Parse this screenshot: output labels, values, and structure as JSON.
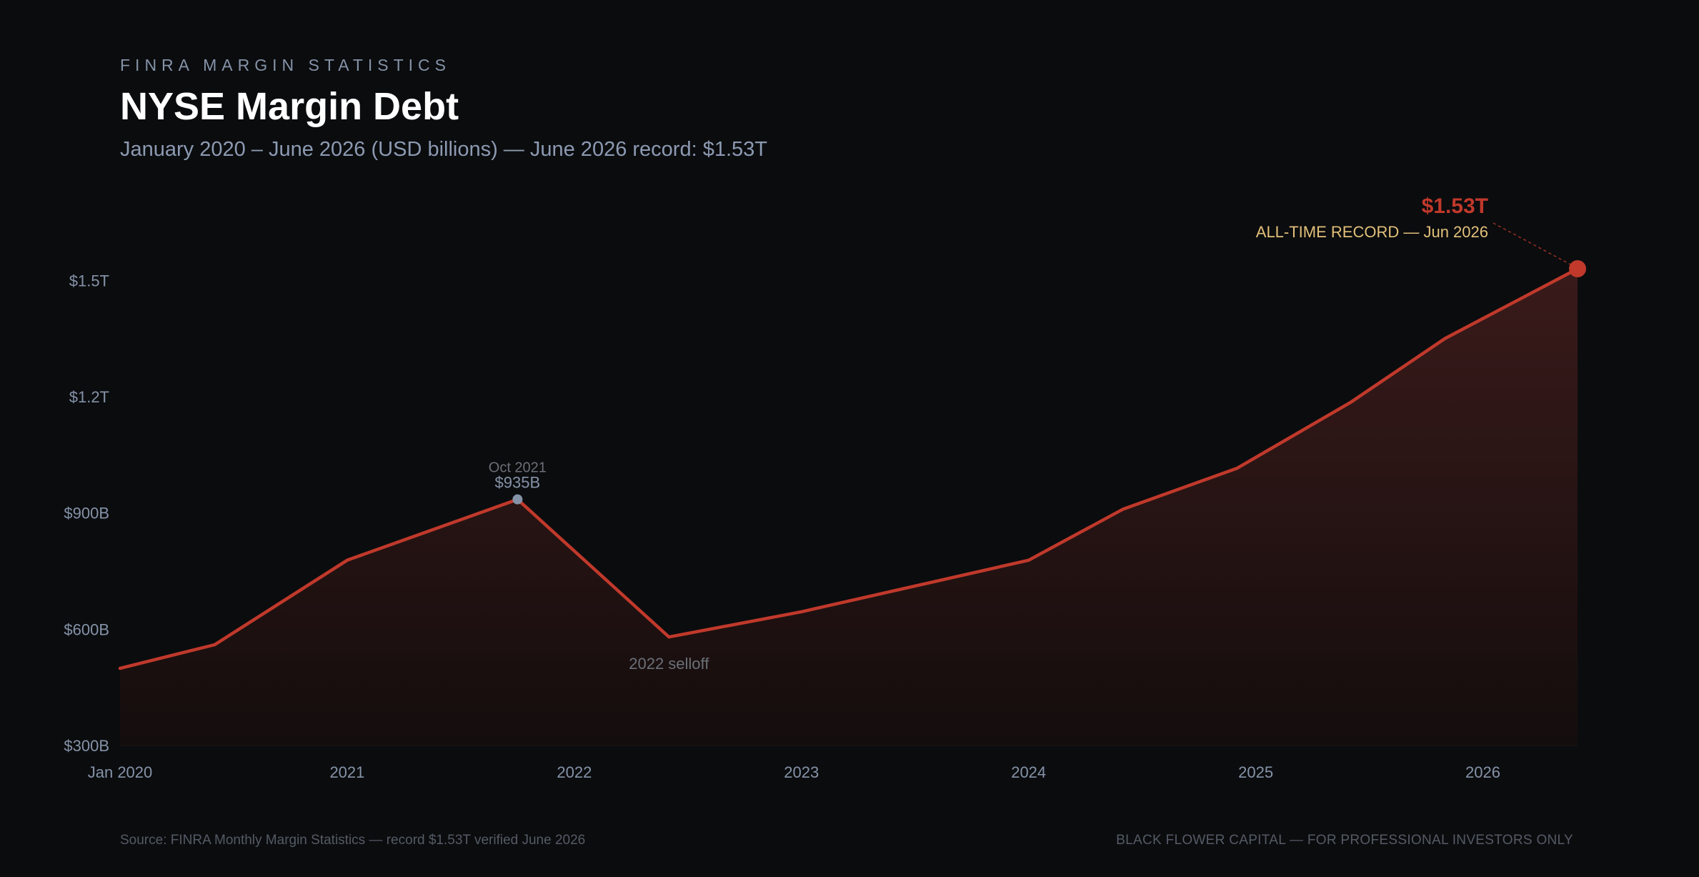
{
  "header": {
    "eyebrow": "FINRA MARGIN STATISTICS",
    "title": "NYSE Margin Debt",
    "subtitle": "January 2020 – June 2026 (USD billions) — June 2026 record: $1.53T"
  },
  "footer": {
    "source": "Source: FINRA Monthly Margin Statistics — record $1.53T verified June 2026",
    "disclaimer": "BLACK FLOWER CAPITAL — FOR PROFESSIONAL INVESTORS ONLY"
  },
  "colors": {
    "line": "#c0392b",
    "area_top": "#3a1a1a",
    "area_bottom": "#140d0d",
    "peak_dot": "#8593a8",
    "record_label": "#c0392b",
    "record_caption": "#e2c07a",
    "axis_text": "#8593a8",
    "annotation_muted": "#6a7078"
  },
  "chart_data": {
    "type": "area",
    "x_unit": "date",
    "y_unit": "USD billions",
    "ylim": [
      300,
      1530
    ],
    "y_ticks": [
      {
        "value": 300,
        "label": "$300B"
      },
      {
        "value": 600,
        "label": "$600B"
      },
      {
        "value": 900,
        "label": "$900B"
      },
      {
        "value": 1200,
        "label": "$1.2T"
      },
      {
        "value": 1500,
        "label": "$1.5T"
      }
    ],
    "x_ticks": [
      {
        "date": "2020-01",
        "label": "Jan 2020"
      },
      {
        "date": "2021-01",
        "label": "2021"
      },
      {
        "date": "2022-01",
        "label": "2022"
      },
      {
        "date": "2023-01",
        "label": "2023"
      },
      {
        "date": "2024-01",
        "label": "2024"
      },
      {
        "date": "2025-01",
        "label": "2025"
      },
      {
        "date": "2026-01",
        "label": "2026"
      }
    ],
    "grid": false,
    "series": [
      {
        "points": [
          {
            "date": "2020-01",
            "value": 499
          },
          {
            "date": "2020-06",
            "value": 560
          },
          {
            "date": "2021-01",
            "value": 778
          },
          {
            "date": "2021-10",
            "value": 935
          },
          {
            "date": "2022-06",
            "value": 580
          },
          {
            "date": "2023-01",
            "value": 645
          },
          {
            "date": "2024-01",
            "value": 778
          },
          {
            "date": "2024-06",
            "value": 910
          },
          {
            "date": "2024-12",
            "value": 1015
          },
          {
            "date": "2025-06",
            "value": 1185
          },
          {
            "date": "2025-11",
            "value": 1350
          },
          {
            "date": "2026-06",
            "value": 1530
          }
        ]
      }
    ],
    "annotations": {
      "peak": {
        "date": "2021-10",
        "value": 935,
        "date_label": "Oct 2021",
        "value_label": "$935B"
      },
      "selloff": {
        "date": "2022-06",
        "value": 580,
        "label": "2022 selloff"
      },
      "record": {
        "date": "2026-06",
        "value": 1530,
        "value_label": "$1.53T",
        "caption": "ALL-TIME RECORD — Jun 2026"
      }
    }
  }
}
